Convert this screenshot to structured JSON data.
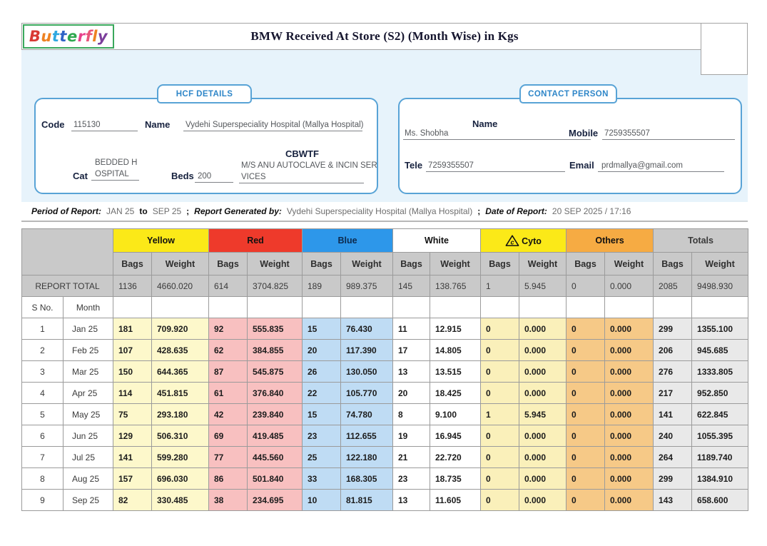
{
  "header": {
    "title": "BMW Received At Store (S2) (Month Wise) in Kgs",
    "logo_text": "Butterfly",
    "logo_border_color": "#3aa85c",
    "logo_letters": [
      {
        "ch": "B",
        "color": "#d93a35"
      },
      {
        "ch": "u",
        "color": "#ee8222"
      },
      {
        "ch": "t",
        "color": "#2fa8e0"
      },
      {
        "ch": "t",
        "color": "#2f63c6"
      },
      {
        "ch": "e",
        "color": "#2fa84f"
      },
      {
        "ch": "r",
        "color": "#e8418c"
      },
      {
        "ch": "f",
        "color": "#e8557a"
      },
      {
        "ch": "l",
        "color": "#ee8222"
      },
      {
        "ch": "y",
        "color": "#7c3f9b"
      }
    ]
  },
  "hcf": {
    "tab_label": "HCF DETAILS",
    "code_label": "Code",
    "code_value": "115130",
    "name_label": "Name",
    "name_value": "Vydehi Superspeciality Hospital (Mallya Hospital)",
    "cat_label": "Cat",
    "cat_value_line1": "BEDDED H",
    "cat_value_line2": "OSPITAL",
    "beds_label": "Beds",
    "beds_value": "200",
    "cbwtf_label": "CBWTF",
    "cbwtf_value_line1": "M/S ANU AUTOCLAVE & INCIN SER",
    "cbwtf_value_line2": "VICES"
  },
  "contact": {
    "tab_label": "CONTACT PERSON",
    "name_label": "Name",
    "name_value": "Ms. Shobha",
    "mobile_label": "Mobile",
    "mobile_value": "7259355507",
    "tele_label": "Tele",
    "tele_value": "7259355507",
    "email_label": "Email",
    "email_value": "prdmallya@gmail.com"
  },
  "report_meta": {
    "period_label": "Period of Report:",
    "period_from": "JAN 25",
    "period_to_word": "to",
    "period_to": "SEP 25",
    "separator1": ";",
    "generated_label": "Report Generated by:",
    "generated_value": "Vydehi Superspeciality Hospital (Mallya Hospital)",
    "separator2": ";",
    "date_label": "Date of Report:",
    "date_value": "20 SEP 2025 / 17:16"
  },
  "table": {
    "sub_headers": [
      "Bags",
      "Weight"
    ],
    "groups": [
      {
        "label": "Yellow",
        "header_bg": "#fbe918",
        "header_text": "#111111",
        "cell_bg": "#fdf8cb",
        "icon": null
      },
      {
        "label": "Red",
        "header_bg": "#ee3a2b",
        "header_text": "#111111",
        "cell_bg": "#f8c0c0",
        "icon": null
      },
      {
        "label": "Blue",
        "header_bg": "#2d97ea",
        "header_text": "#0d2a4d",
        "cell_bg": "#bfdcf4",
        "icon": null
      },
      {
        "label": "White",
        "header_bg": "#ffffff",
        "header_text": "#111111",
        "cell_bg": "#ffffff",
        "icon": null
      },
      {
        "label": "Cyto",
        "header_bg": "#fbe918",
        "header_text": "#111111",
        "cell_bg": "#faf0ba",
        "icon": "cyto-triangle"
      },
      {
        "label": "Others",
        "header_bg": "#f6ab43",
        "header_text": "#111111",
        "cell_bg": "#f6c987",
        "icon": null
      },
      {
        "label": "Totals",
        "header_bg": "#c9c9c9",
        "header_text": "#3a3a3a",
        "cell_bg": "#e9e9e9",
        "icon": null
      }
    ],
    "report_total_label": "REPORT TOTAL",
    "report_total": [
      "1136",
      "4660.020",
      "614",
      "3704.825",
      "189",
      "989.375",
      "145",
      "138.765",
      "1",
      "5.945",
      "0",
      "0.000",
      "2085",
      "9498.930"
    ],
    "sno_label": "S No.",
    "month_label": "Month",
    "rows": [
      {
        "sno": "1",
        "month": "Jan 25",
        "values": [
          "181",
          "709.920",
          "92",
          "555.835",
          "15",
          "76.430",
          "11",
          "12.915",
          "0",
          "0.000",
          "0",
          "0.000",
          "299",
          "1355.100"
        ]
      },
      {
        "sno": "2",
        "month": "Feb 25",
        "values": [
          "107",
          "428.635",
          "62",
          "384.855",
          "20",
          "117.390",
          "17",
          "14.805",
          "0",
          "0.000",
          "0",
          "0.000",
          "206",
          "945.685"
        ]
      },
      {
        "sno": "3",
        "month": "Mar 25",
        "values": [
          "150",
          "644.365",
          "87",
          "545.875",
          "26",
          "130.050",
          "13",
          "13.515",
          "0",
          "0.000",
          "0",
          "0.000",
          "276",
          "1333.805"
        ]
      },
      {
        "sno": "4",
        "month": "Apr 25",
        "values": [
          "114",
          "451.815",
          "61",
          "376.840",
          "22",
          "105.770",
          "20",
          "18.425",
          "0",
          "0.000",
          "0",
          "0.000",
          "217",
          "952.850"
        ]
      },
      {
        "sno": "5",
        "month": "May 25",
        "values": [
          "75",
          "293.180",
          "42",
          "239.840",
          "15",
          "74.780",
          "8",
          "9.100",
          "1",
          "5.945",
          "0",
          "0.000",
          "141",
          "622.845"
        ]
      },
      {
        "sno": "6",
        "month": "Jun 25",
        "values": [
          "129",
          "506.310",
          "69",
          "419.485",
          "23",
          "112.655",
          "19",
          "16.945",
          "0",
          "0.000",
          "0",
          "0.000",
          "240",
          "1055.395"
        ]
      },
      {
        "sno": "7",
        "month": "Jul 25",
        "values": [
          "141",
          "599.280",
          "77",
          "445.560",
          "25",
          "122.180",
          "21",
          "22.720",
          "0",
          "0.000",
          "0",
          "0.000",
          "264",
          "1189.740"
        ]
      },
      {
        "sno": "8",
        "month": "Aug 25",
        "values": [
          "157",
          "696.030",
          "86",
          "501.840",
          "33",
          "168.305",
          "23",
          "18.735",
          "0",
          "0.000",
          "0",
          "0.000",
          "299",
          "1384.910"
        ]
      },
      {
        "sno": "9",
        "month": "Sep 25",
        "values": [
          "82",
          "330.485",
          "38",
          "234.695",
          "10",
          "81.815",
          "13",
          "11.605",
          "0",
          "0.000",
          "0",
          "0.000",
          "143",
          "658.600"
        ]
      }
    ]
  }
}
